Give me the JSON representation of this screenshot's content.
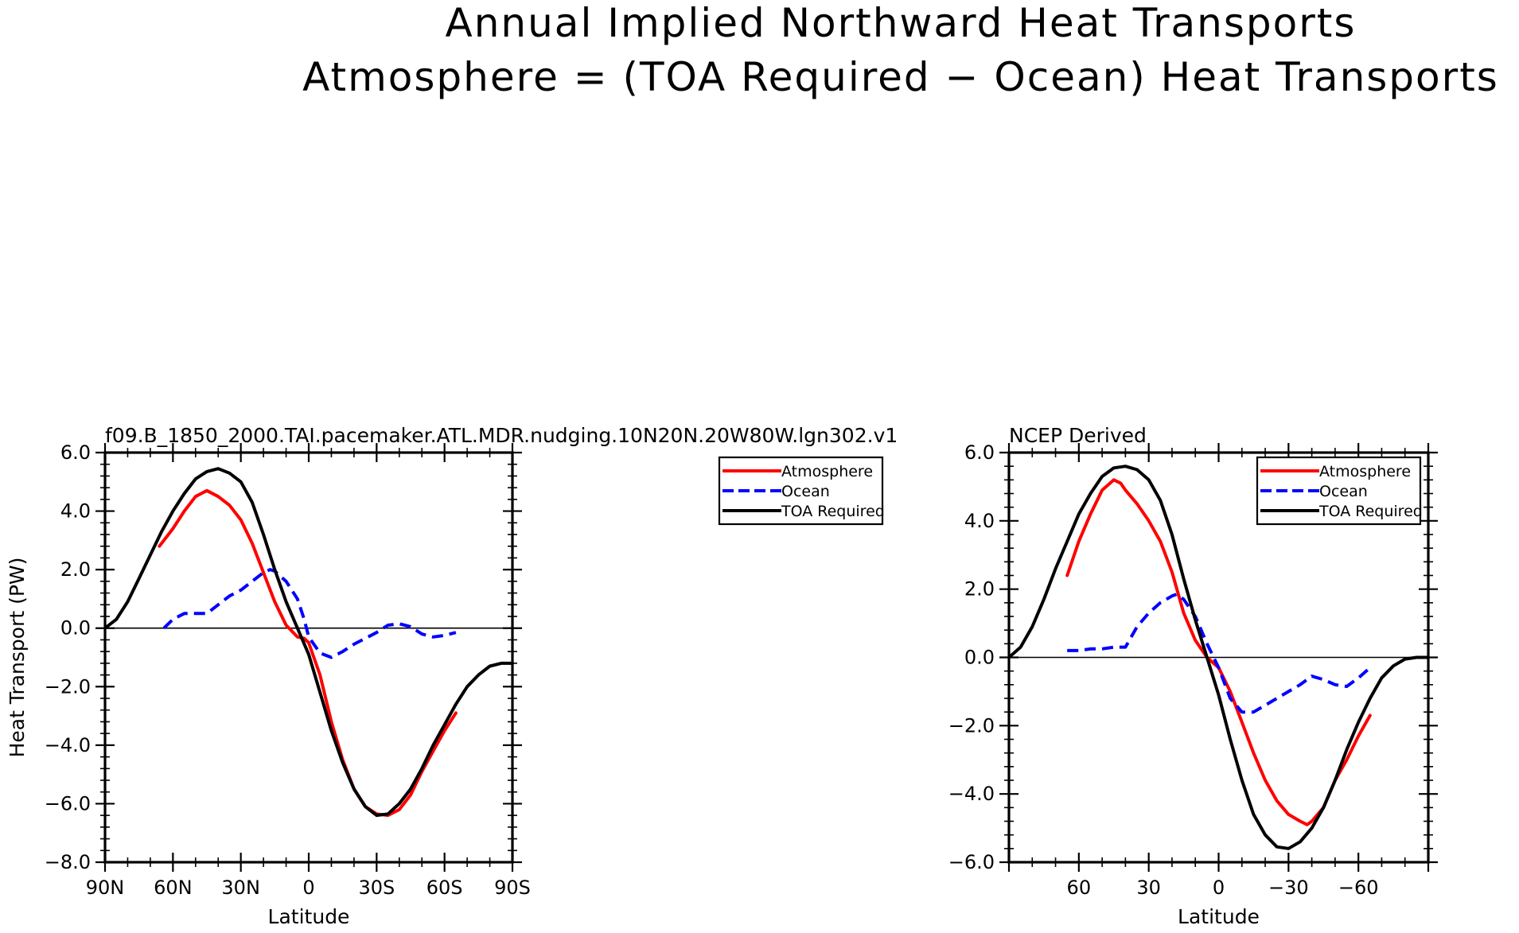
{
  "figure": {
    "title_line1": "Annual Implied Northward Heat Transports",
    "title_line2": "Atmosphere = (TOA Required − Ocean) Heat Transports"
  },
  "chart_data": [
    {
      "type": "line",
      "title": "f09.B_1850_2000.TAI.pacemaker.ATL.MDR.nudging.10N20N.20W80W.lgn302.v1",
      "xlabel": "Latitude",
      "ylabel": "Heat Transport (PW)",
      "xlim": [
        90,
        -90
      ],
      "ylim": [
        -8,
        6
      ],
      "xticks": [
        90,
        60,
        30,
        0,
        -30,
        -60,
        -90
      ],
      "xtick_labels": [
        "90N",
        "60N",
        "30N",
        "0",
        "30S",
        "60S",
        "90S"
      ],
      "yticks": [
        6,
        4,
        2,
        0,
        -2,
        -4,
        -6,
        -8
      ],
      "ytick_labels": [
        "6.0",
        "4.0",
        "2.0",
        "0.0",
        "−2.0",
        "−4.0",
        "−6.0",
        "−8.0"
      ],
      "legend": [
        "Atmosphere",
        "Ocean",
        "TOA Required"
      ],
      "legend_position": "outside-top-right",
      "series": [
        {
          "name": "Atmosphere",
          "color": "#ff0000",
          "dash": "solid",
          "x": [
            66,
            60,
            55,
            50,
            45,
            40,
            35,
            30,
            25,
            20,
            15,
            10,
            5,
            2,
            0,
            -5,
            -10,
            -15,
            -20,
            -25,
            -30,
            -35,
            -40,
            -42,
            -45,
            -50,
            -55,
            -60,
            -65
          ],
          "y": [
            2.8,
            3.4,
            4.0,
            4.5,
            4.7,
            4.5,
            4.2,
            3.7,
            2.9,
            1.9,
            0.9,
            0.1,
            -0.3,
            -0.35,
            -0.5,
            -1.6,
            -3.2,
            -4.5,
            -5.5,
            -6.1,
            -6.35,
            -6.4,
            -6.2,
            -6.0,
            -5.7,
            -4.9,
            -4.2,
            -3.5,
            -2.9
          ]
        },
        {
          "name": "Ocean",
          "color": "#0000ff",
          "dash": "dashed",
          "x": [
            64,
            60,
            55,
            50,
            45,
            40,
            35,
            30,
            25,
            20,
            17,
            15,
            10,
            5,
            2,
            0,
            -5,
            -10,
            -15,
            -20,
            -25,
            -30,
            -35,
            -40,
            -45,
            -50,
            -55,
            -60,
            -65
          ],
          "y": [
            0.0,
            0.3,
            0.5,
            0.5,
            0.5,
            0.8,
            1.1,
            1.3,
            1.6,
            1.9,
            2.0,
            1.95,
            1.6,
            1.0,
            0.3,
            -0.3,
            -0.85,
            -1.0,
            -0.8,
            -0.55,
            -0.35,
            -0.15,
            0.1,
            0.15,
            0.05,
            -0.2,
            -0.3,
            -0.25,
            -0.15
          ]
        },
        {
          "name": "TOA Required",
          "color": "#000000",
          "dash": "solid",
          "x": [
            90,
            85,
            80,
            75,
            70,
            65,
            60,
            55,
            50,
            45,
            40,
            35,
            30,
            25,
            20,
            15,
            10,
            5,
            0,
            -5,
            -10,
            -15,
            -20,
            -25,
            -30,
            -35,
            -40,
            -45,
            -50,
            -55,
            -60,
            -65,
            -70,
            -75,
            -80,
            -85,
            -90
          ],
          "y": [
            0.0,
            0.3,
            0.9,
            1.7,
            2.5,
            3.3,
            4.0,
            4.6,
            5.1,
            5.35,
            5.45,
            5.3,
            5.0,
            4.3,
            3.2,
            2.0,
            0.9,
            0.0,
            -0.9,
            -2.2,
            -3.5,
            -4.6,
            -5.5,
            -6.1,
            -6.4,
            -6.35,
            -6.0,
            -5.5,
            -4.8,
            -4.0,
            -3.3,
            -2.6,
            -2.0,
            -1.6,
            -1.3,
            -1.2,
            -1.2
          ]
        }
      ]
    },
    {
      "type": "line",
      "title": "NCEP Derived",
      "xlabel": "Latitude",
      "ylabel": "",
      "xlim": [
        90,
        -90
      ],
      "ylim": [
        -6,
        6
      ],
      "xticks": [
        60,
        30,
        0,
        -30,
        -60
      ],
      "xtick_labels": [
        "60",
        "30",
        "0",
        "−30",
        "−60"
      ],
      "yticks": [
        6,
        4,
        2,
        0,
        -2,
        -4,
        -6
      ],
      "ytick_labels": [
        "6.0",
        "4.0",
        "2.0",
        "0.0",
        "−2.0",
        "−4.0",
        "−6.0"
      ],
      "legend": [
        "Atmosphere",
        "Ocean",
        "TOA Required"
      ],
      "legend_position": "top-right",
      "series": [
        {
          "name": "Atmosphere",
          "color": "#ff0000",
          "dash": "solid",
          "x": [
            65,
            60,
            55,
            50,
            45,
            42,
            40,
            35,
            30,
            25,
            20,
            15,
            10,
            5,
            0,
            -5,
            -10,
            -15,
            -20,
            -25,
            -30,
            -35,
            -38,
            -40,
            -45,
            -50,
            -55,
            -60,
            -65
          ],
          "y": [
            2.4,
            3.4,
            4.2,
            4.9,
            5.2,
            5.1,
            4.9,
            4.5,
            4.0,
            3.4,
            2.5,
            1.3,
            0.5,
            0.0,
            -0.3,
            -1.0,
            -1.9,
            -2.8,
            -3.6,
            -4.2,
            -4.6,
            -4.8,
            -4.9,
            -4.8,
            -4.4,
            -3.6,
            -3.0,
            -2.3,
            -1.7
          ]
        },
        {
          "name": "Ocean",
          "color": "#0000ff",
          "dash": "dashed",
          "x": [
            65,
            60,
            55,
            50,
            45,
            40,
            35,
            30,
            25,
            20,
            18,
            15,
            10,
            5,
            0,
            -5,
            -10,
            -15,
            -20,
            -25,
            -30,
            -35,
            -40,
            -45,
            -50,
            -55,
            -60,
            -65
          ],
          "y": [
            0.2,
            0.2,
            0.25,
            0.25,
            0.3,
            0.3,
            0.9,
            1.3,
            1.6,
            1.8,
            1.85,
            1.7,
            1.2,
            0.4,
            -0.3,
            -1.2,
            -1.6,
            -1.6,
            -1.4,
            -1.2,
            -1.0,
            -0.8,
            -0.55,
            -0.65,
            -0.8,
            -0.85,
            -0.6,
            -0.3
          ]
        },
        {
          "name": "TOA Required",
          "color": "#000000",
          "dash": "solid",
          "x": [
            90,
            85,
            80,
            75,
            70,
            65,
            60,
            55,
            50,
            45,
            40,
            35,
            30,
            25,
            20,
            15,
            10,
            5,
            0,
            -5,
            -10,
            -15,
            -20,
            -25,
            -30,
            -35,
            -40,
            -45,
            -50,
            -55,
            -60,
            -65,
            -70,
            -75,
            -80,
            -85,
            -90
          ],
          "y": [
            0.0,
            0.3,
            0.9,
            1.7,
            2.6,
            3.4,
            4.2,
            4.8,
            5.3,
            5.55,
            5.6,
            5.5,
            5.2,
            4.6,
            3.6,
            2.3,
            1.1,
            0.0,
            -1.1,
            -2.4,
            -3.6,
            -4.6,
            -5.2,
            -5.55,
            -5.6,
            -5.4,
            -5.0,
            -4.4,
            -3.6,
            -2.7,
            -1.9,
            -1.2,
            -0.6,
            -0.25,
            -0.05,
            0.0,
            0.0
          ]
        }
      ]
    }
  ]
}
